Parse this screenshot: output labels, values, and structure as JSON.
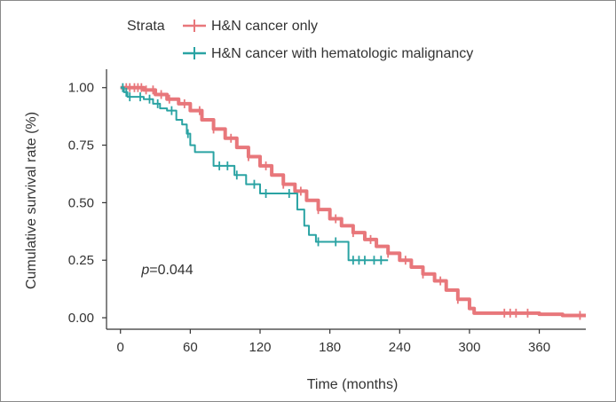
{
  "chart_data": {
    "type": "line",
    "subtype": "kaplan-meier",
    "title": "",
    "xlabel": "Time (months)",
    "ylabel": "Cumulative survival rate (%)",
    "xlim": [
      -12,
      400
    ],
    "ylim": [
      -0.05,
      1.08
    ],
    "xticks": [
      0,
      60,
      120,
      180,
      240,
      300,
      360
    ],
    "xtick_labels": [
      "0",
      "60",
      "120",
      "180",
      "240",
      "300",
      "360"
    ],
    "yticks": [
      0.0,
      0.25,
      0.5,
      0.75,
      1.0
    ],
    "ytick_labels": [
      "0.00",
      "0.25",
      "0.50",
      "0.75",
      "1.00"
    ],
    "legend": {
      "title": "Strata",
      "position": "top"
    },
    "annotation": {
      "italic": "p",
      "text": "=0.044",
      "at": [
        18,
        0.19
      ]
    },
    "series": [
      {
        "name": "H&N cancer only",
        "color": "#e8777b",
        "x": [
          0,
          10,
          20,
          30,
          40,
          50,
          60,
          70,
          80,
          90,
          100,
          110,
          120,
          130,
          140,
          150,
          160,
          170,
          180,
          190,
          200,
          210,
          220,
          230,
          240,
          250,
          260,
          270,
          280,
          290,
          300,
          304,
          310,
          320,
          330,
          340,
          360,
          380,
          400
        ],
        "y": [
          1.0,
          1.0,
          0.99,
          0.97,
          0.95,
          0.93,
          0.9,
          0.86,
          0.82,
          0.78,
          0.74,
          0.7,
          0.66,
          0.62,
          0.58,
          0.55,
          0.51,
          0.47,
          0.43,
          0.4,
          0.37,
          0.34,
          0.31,
          0.28,
          0.25,
          0.22,
          0.19,
          0.16,
          0.12,
          0.08,
          0.04,
          0.02,
          0.02,
          0.02,
          0.02,
          0.02,
          0.015,
          0.01,
          0.01
        ],
        "censored_x": [
          5,
          8,
          12,
          15,
          18,
          22,
          28,
          35,
          42,
          55,
          68,
          80,
          95,
          110,
          125,
          140,
          155,
          170,
          185,
          200,
          215,
          230,
          245,
          260,
          275,
          290,
          330,
          335,
          340,
          350,
          395
        ]
      },
      {
        "name": "H&N cancer with hematologic malignancy",
        "color": "#2aa3a3",
        "x": [
          0,
          3,
          6,
          10,
          14,
          20,
          28,
          34,
          40,
          48,
          53,
          57,
          60,
          64,
          72,
          80,
          98,
          108,
          120,
          132,
          152,
          158,
          162,
          168,
          196,
          230
        ],
        "y": [
          1.0,
          0.98,
          0.96,
          0.96,
          0.96,
          0.95,
          0.93,
          0.91,
          0.9,
          0.86,
          0.84,
          0.8,
          0.75,
          0.72,
          0.72,
          0.66,
          0.62,
          0.58,
          0.54,
          0.54,
          0.47,
          0.4,
          0.36,
          0.33,
          0.25,
          0.25
        ],
        "censored_x": [
          2,
          5,
          8,
          17,
          25,
          32,
          44,
          58,
          85,
          92,
          100,
          115,
          125,
          145,
          170,
          185,
          200,
          205,
          210,
          218,
          224
        ]
      }
    ]
  }
}
